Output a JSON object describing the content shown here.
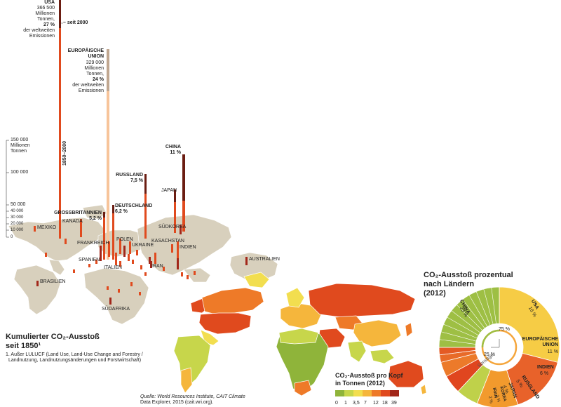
{
  "left_map": {
    "title_line1": "Kumulierter CO₂-Ausstoß",
    "title_line2": "seit 1850¹",
    "footnote_line1": "1. Außer LULUCF (Land Use, Land-Use Change and Forestry /",
    "footnote_line2": "Landnutzung, Landnutzungsänderungen und Forstwirtschaft)",
    "scale": {
      "label_top": "150 000",
      "label_unit1": "Millionen",
      "label_unit2": "Tonnen",
      "ticks": [
        "100 000",
        "50 000",
        "40 000",
        "30 000",
        "20 000",
        "10 000",
        "0"
      ]
    },
    "usa": {
      "name": "USA",
      "value_line1": "366 500",
      "value_line2": "Millionen",
      "value_line3": "Tonnen,",
      "percent": "27 %",
      "desc_line1": "der weltweiten",
      "desc_line2": "Emissionen",
      "since_label": "– seit 2000",
      "period_label": "1850–2000",
      "value": 366500
    },
    "eu": {
      "name_line1": "EUROPÄISCHE",
      "name_line2": "UNION",
      "value_line1": "329 000",
      "value_line2": "Millionen",
      "value_line3": "Tonnen,",
      "percent": "24 %",
      "desc_line1": "der weltweiten",
      "desc_line2": "Emissionen",
      "value": 329000
    },
    "china": {
      "name": "CHINA",
      "percent": "11 %"
    },
    "russland": {
      "name": "RUSSLAND",
      "percent": "7,5 %"
    },
    "deutschland": {
      "name": "DEUTSCHLAND",
      "percent": "6,2 %"
    },
    "gb": {
      "name": "GROSSBRITANNIEN",
      "percent": "5,2 %"
    },
    "countries": {
      "japan": "JAPAN",
      "suedkorea": "SÜDKOREA",
      "kasachstan": "KASACHSTAN",
      "indien": "INDIEN",
      "iran": "IRAN",
      "ukraine": "UKRAINE",
      "polen": "POLEN",
      "frankreich": "FRANKREICH",
      "spanien": "SPANIEN",
      "italien": "ITALIEN",
      "kanada": "KANADA",
      "mexiko": "MEXIKO",
      "brasilien": "BRASILIEN",
      "suedafrika": "SÜDAFRIKA",
      "australien": "AUSTRALIEN"
    }
  },
  "source": {
    "line1": "Quelle: World Resources Institute, CAIT Climate",
    "line2": "Data Explorer, 2015 (cait.wri.org)."
  },
  "per_capita": {
    "title_line1": "CO₂-Ausstoß pro Kopf",
    "title_line2": "in Tonnen (2012)",
    "legend_labels": [
      "0",
      "1",
      "3,5",
      "7",
      "12",
      "18",
      "39"
    ],
    "legend_colors": [
      "#8fb43a",
      "#c7d64b",
      "#f2de4f",
      "#f5b63c",
      "#ee7a28",
      "#e04a1e",
      "#a2271a"
    ]
  },
  "donut": {
    "title_line1": "CO₂-Ausstoß prozentual",
    "title_line2": "nach Ländern",
    "title_line3": "(2012)",
    "inner_label_75": "75 %",
    "inner_label_25": "25 %",
    "segments": [
      {
        "name": "CHINA",
        "percent": "29 %",
        "value": 29,
        "color": "#f6cc45"
      },
      {
        "name": "USA",
        "percent": "16 %",
        "value": 16,
        "color": "#e8622a"
      },
      {
        "name_line1": "EUROPÄISCHE",
        "name_line2": "UNION",
        "percent": "11 %",
        "value": 11,
        "color": "#f29a2d"
      },
      {
        "name": "INDIEN",
        "percent": "6 %",
        "value": 6,
        "color": "#bfd14a"
      },
      {
        "name": "RUSSLAND",
        "percent": "5 %",
        "value": 5,
        "color": "#e0461f"
      },
      {
        "name": "JAPAN",
        "percent": "4 %",
        "value": 4,
        "color": "#ec7a2a"
      },
      {
        "name": "KOREA",
        "percent": "2 %",
        "value": 2,
        "color": "#e86a28"
      },
      {
        "name": "IRAN",
        "percent": "2 %",
        "value": 2,
        "color": "#e45a24"
      },
      {
        "name": "Sonstige",
        "percent": "",
        "value": 25,
        "color": "#9ebf44"
      }
    ]
  }
}
